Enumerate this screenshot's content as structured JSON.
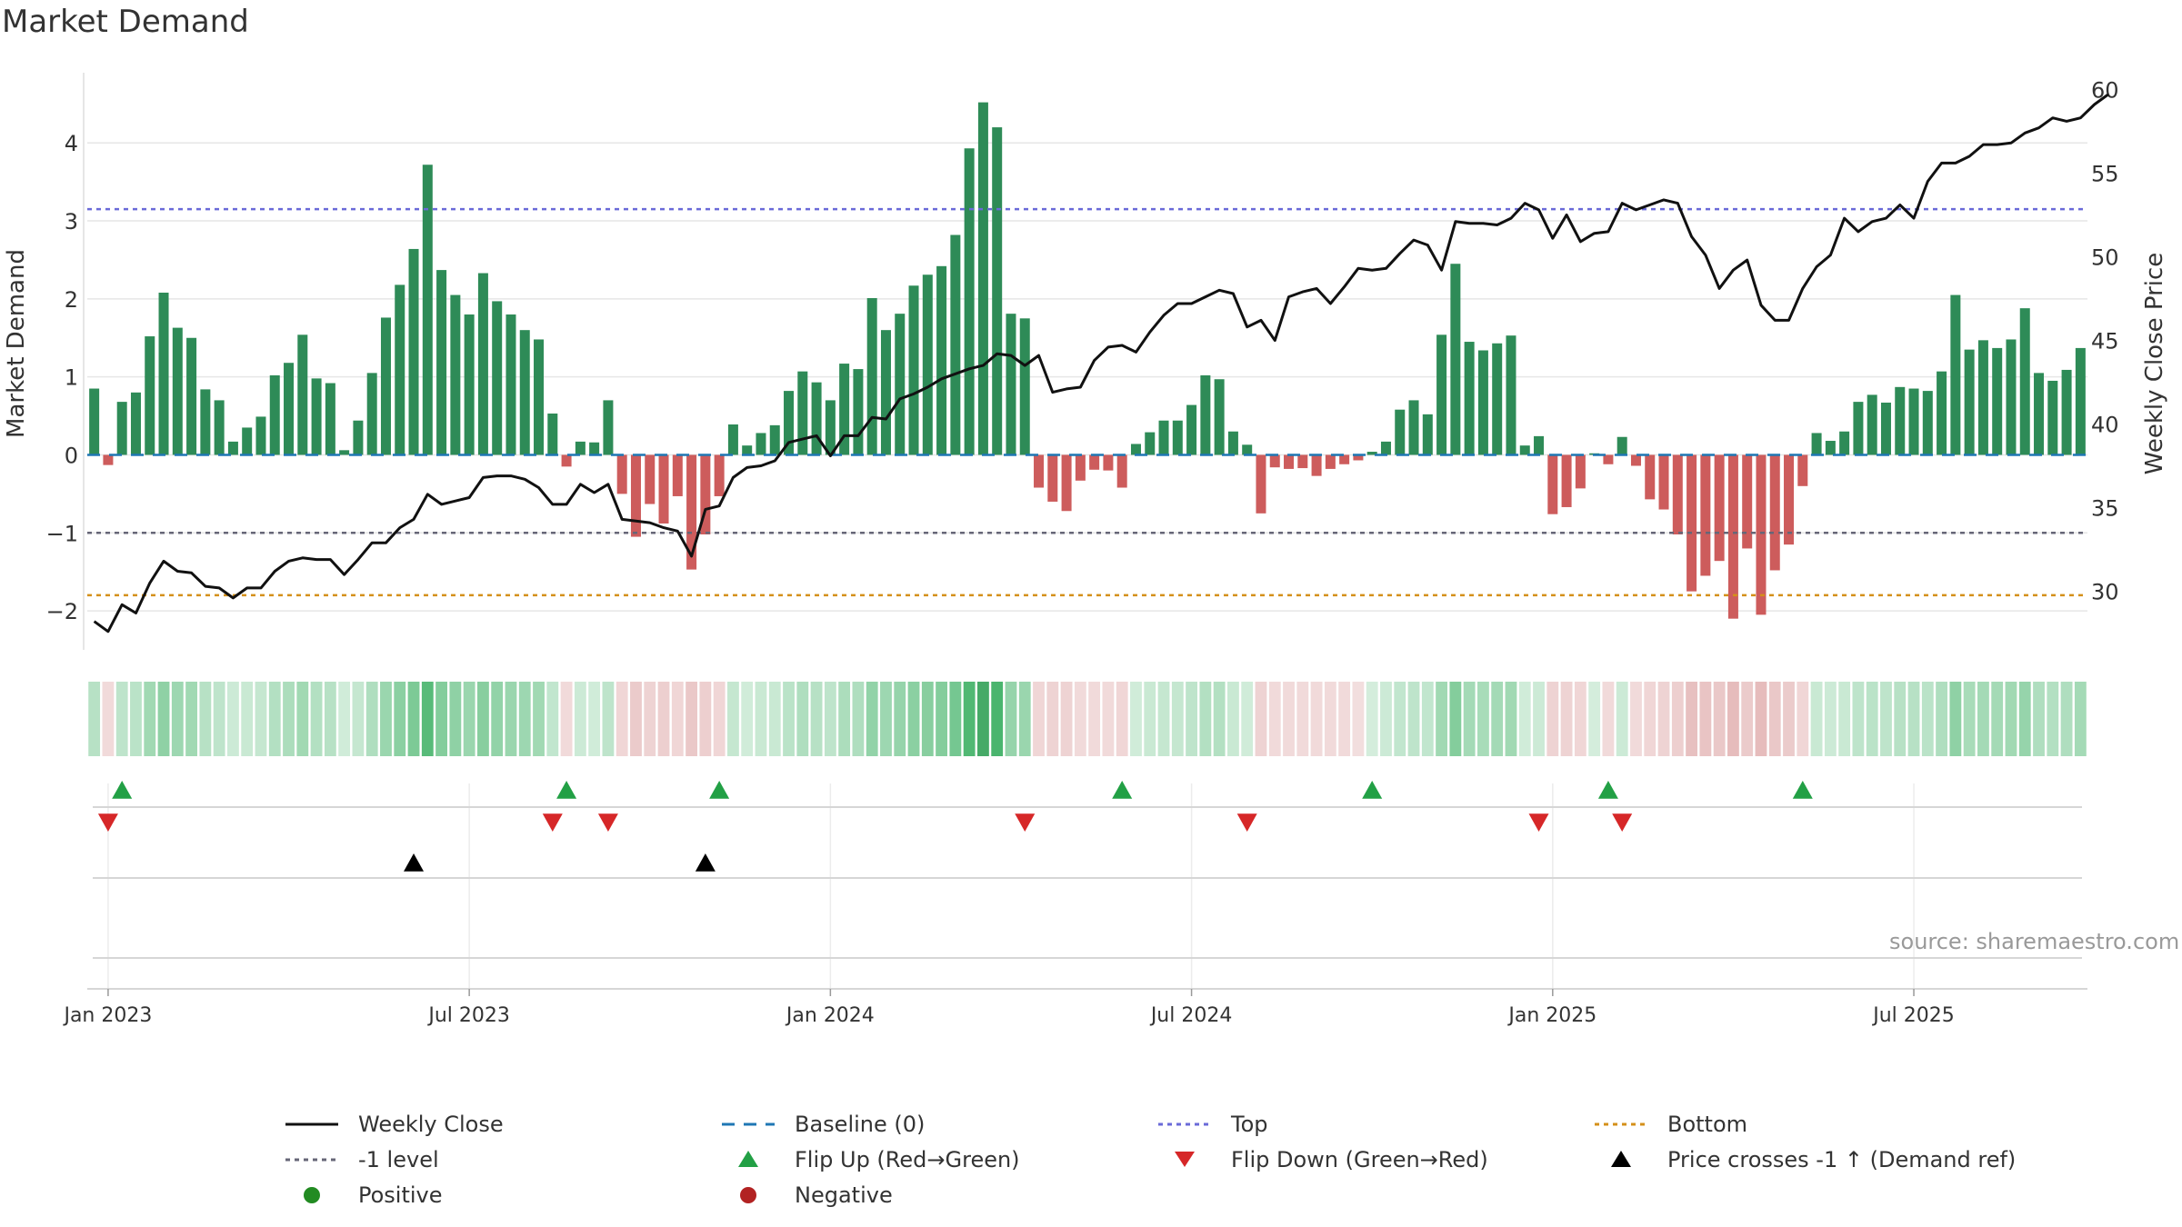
{
  "page_title": "Market Demand",
  "source": "source: sharemaestro.com",
  "colors": {
    "positive_bar": "#2e8b57",
    "negative_bar": "#cd5c5c",
    "price_line": "#111111",
    "baseline": "#1f77b4",
    "top_line": "#6a6ad8",
    "minus_one_line": "#666677",
    "bottom_line": "#d4901a",
    "flip_up": "#22a045",
    "flip_down": "#d62728",
    "cross": "#000000",
    "positive_dot": "#228b22",
    "negative_dot": "#b22222"
  },
  "chart_data": {
    "type": "bar",
    "title": "Market Demand",
    "ylabel": "Market Demand",
    "y2label": "Weekly Close Price",
    "ylim": [
      -2.5,
      4.9
    ],
    "y2lim": [
      26.5,
      61
    ],
    "yticks": [
      "−2",
      "−1",
      "0",
      "1",
      "2",
      "3",
      "4"
    ],
    "ytick_values": [
      -2,
      -1,
      0,
      1,
      2,
      3,
      4
    ],
    "y2ticks": [
      "30",
      "35",
      "40",
      "45",
      "50",
      "55",
      "60"
    ],
    "y2tick_values": [
      30,
      35,
      40,
      45,
      50,
      55,
      60
    ],
    "xtick_labels": [
      "Jan 2023",
      "Jul 2023",
      "Jan 2024",
      "Jul 2024",
      "Jan 2025",
      "Jul 2025"
    ],
    "xtick_weeks": [
      1,
      27,
      53,
      79,
      105,
      131
    ],
    "levels": {
      "top": 3.15,
      "minus_one": -1.0,
      "bottom": -1.8,
      "baseline": 0
    },
    "demand": [
      0.85,
      -0.13,
      0.68,
      0.8,
      1.52,
      2.08,
      1.63,
      1.5,
      0.84,
      0.7,
      0.17,
      0.35,
      0.49,
      1.02,
      1.18,
      1.54,
      0.98,
      0.92,
      0.06,
      0.44,
      1.05,
      1.76,
      2.18,
      2.64,
      3.72,
      2.37,
      2.05,
      1.8,
      2.33,
      1.97,
      1.8,
      1.6,
      1.48,
      0.53,
      -0.15,
      0.17,
      0.16,
      0.7,
      -0.5,
      -1.05,
      -0.63,
      -0.88,
      -0.53,
      -1.47,
      -1.02,
      -0.53,
      0.39,
      0.12,
      0.28,
      0.38,
      0.82,
      1.07,
      0.93,
      0.7,
      1.17,
      1.1,
      2.01,
      1.6,
      1.81,
      2.17,
      2.31,
      2.42,
      2.82,
      3.93,
      4.52,
      4.2,
      1.81,
      1.75,
      -0.42,
      -0.6,
      -0.72,
      -0.33,
      -0.19,
      -0.2,
      -0.42,
      0.14,
      0.29,
      0.44,
      0.44,
      0.64,
      1.02,
      0.97,
      0.3,
      0.13,
      -0.75,
      -0.16,
      -0.18,
      -0.17,
      -0.27,
      -0.18,
      -0.12,
      -0.07,
      0.04,
      0.17,
      0.58,
      0.7,
      0.52,
      1.54,
      2.45,
      1.45,
      1.34,
      1.43,
      1.53,
      0.12,
      0.24,
      -0.76,
      -0.67,
      -0.43,
      0.02,
      -0.12,
      0.23,
      -0.14,
      -0.57,
      -0.7,
      -1.02,
      -1.75,
      -1.55,
      -1.36,
      -2.1,
      -1.2,
      -2.05,
      -1.48,
      -1.15,
      -0.4,
      0.28,
      0.18,
      0.3,
      0.68,
      0.77,
      0.67,
      0.87,
      0.85,
      0.82,
      1.07,
      2.05,
      1.35,
      1.47,
      1.37,
      1.48,
      1.88,
      1.05,
      0.95,
      1.09,
      1.37
    ],
    "price": [
      28.2,
      27.6,
      29.2,
      28.7,
      30.5,
      31.8,
      31.2,
      31.1,
      30.3,
      30.2,
      29.6,
      30.2,
      30.2,
      31.2,
      31.8,
      32.0,
      31.9,
      31.9,
      31.0,
      31.9,
      32.9,
      32.9,
      33.8,
      34.3,
      35.8,
      35.2,
      35.4,
      35.6,
      36.8,
      36.9,
      36.9,
      36.7,
      36.2,
      35.2,
      35.2,
      36.4,
      35.9,
      36.4,
      34.3,
      34.2,
      34.1,
      33.8,
      33.6,
      32.1,
      34.9,
      35.1,
      36.8,
      37.4,
      37.5,
      37.8,
      38.9,
      39.1,
      39.3,
      38.1,
      39.3,
      39.3,
      40.4,
      40.3,
      41.5,
      41.8,
      42.2,
      42.7,
      43.0,
      43.3,
      43.5,
      44.2,
      44.1,
      43.5,
      44.1,
      41.9,
      42.1,
      42.2,
      43.8,
      44.6,
      44.7,
      44.3,
      45.5,
      46.5,
      47.2,
      47.2,
      47.6,
      48.0,
      47.8,
      45.8,
      46.2,
      45.0,
      47.6,
      47.9,
      48.1,
      47.2,
      48.2,
      49.3,
      49.2,
      49.3,
      50.2,
      51.0,
      50.7,
      49.2,
      52.1,
      52.0,
      52.0,
      51.9,
      52.3,
      53.2,
      52.8,
      51.1,
      52.5,
      50.9,
      51.4,
      51.5,
      53.2,
      52.8,
      53.1,
      53.4,
      53.2,
      51.2,
      50.1,
      48.1,
      49.2,
      49.8,
      47.1,
      46.2,
      46.2,
      48.1,
      49.4,
      50.1,
      52.3,
      51.5,
      52.1,
      52.3,
      53.1,
      52.3,
      54.5,
      55.6,
      55.6,
      56.0,
      56.7,
      56.7,
      56.8,
      57.4,
      57.7,
      58.3,
      58.1,
      58.3,
      59.1,
      59.7
    ],
    "strip_intensity": [
      0.85,
      -0.13,
      0.68,
      0.8,
      1.52,
      2.08,
      1.63,
      1.5,
      0.84,
      0.7,
      0.17,
      0.35,
      0.49,
      1.02,
      1.18,
      1.54,
      0.98,
      0.92,
      0.06,
      0.44,
      1.05,
      1.76,
      2.18,
      2.64,
      3.72,
      2.37,
      2.05,
      1.8,
      2.33,
      1.97,
      1.8,
      1.6,
      1.48,
      0.53,
      -0.15,
      0.17,
      0.16,
      0.7,
      -0.5,
      -1.05,
      -0.63,
      -0.88,
      -0.53,
      -1.47,
      -1.02,
      -0.53,
      0.39,
      0.12,
      0.28,
      0.38,
      0.82,
      1.07,
      0.93,
      0.7,
      1.17,
      1.1,
      2.01,
      1.6,
      1.81,
      2.17,
      2.31,
      2.42,
      2.82,
      3.93,
      4.52,
      4.2,
      1.81,
      1.75,
      -0.42,
      -0.6,
      -0.72,
      -0.33,
      -0.19,
      -0.2,
      -0.42,
      0.14,
      0.29,
      0.44,
      0.44,
      0.64,
      1.02,
      0.97,
      0.3,
      0.13,
      -0.75,
      -0.16,
      -0.18,
      -0.17,
      -0.27,
      -0.18,
      -0.12,
      -0.07,
      0.04,
      0.17,
      0.58,
      0.7,
      0.52,
      1.54,
      2.45,
      1.45,
      1.34,
      1.43,
      1.53,
      0.12,
      0.24,
      -0.76,
      -0.67,
      -0.43,
      0.02,
      -0.12,
      0.23,
      -0.14,
      -0.57,
      -0.7,
      -1.02,
      -1.75,
      -1.55,
      -1.36,
      -2.1,
      -1.2,
      -2.05,
      -1.48,
      -1.15,
      -0.4,
      0.28,
      0.18,
      0.3,
      0.68,
      0.77,
      0.67,
      0.87,
      0.85,
      0.82,
      1.07,
      2.05,
      1.35,
      1.47,
      1.37,
      1.48,
      1.88,
      1.05,
      0.95,
      1.09,
      1.37
    ],
    "flip_up_weeks": [
      2,
      34,
      45,
      74,
      92,
      109,
      123
    ],
    "flip_down_weeks": [
      1,
      33,
      37,
      67,
      83,
      104,
      110
    ],
    "cross_up_weeks": [
      23,
      44
    ]
  },
  "legend": [
    {
      "label": "Weekly Close",
      "symbol": "solid-line",
      "color_key": "price_line"
    },
    {
      "label": "Baseline (0)",
      "symbol": "dashed-line",
      "color_key": "baseline"
    },
    {
      "label": "Top",
      "symbol": "dotted-line",
      "color_key": "top_line"
    },
    {
      "label": "Bottom",
      "symbol": "dotted-line",
      "color_key": "bottom_line"
    },
    {
      "label": "-1 level",
      "symbol": "dotted-line",
      "color_key": "minus_one_line"
    },
    {
      "label": "Flip Up (Red→Green)",
      "symbol": "triangle-up",
      "color_key": "flip_up"
    },
    {
      "label": "Flip Down (Green→Red)",
      "symbol": "triangle-down",
      "color_key": "flip_down"
    },
    {
      "label": "Price crosses -1 ↑ (Demand ref)",
      "symbol": "triangle-up",
      "color_key": "cross"
    },
    {
      "label": "Positive",
      "symbol": "dot",
      "color_key": "positive_dot"
    },
    {
      "label": "Negative",
      "symbol": "dot",
      "color_key": "negative_dot"
    }
  ]
}
